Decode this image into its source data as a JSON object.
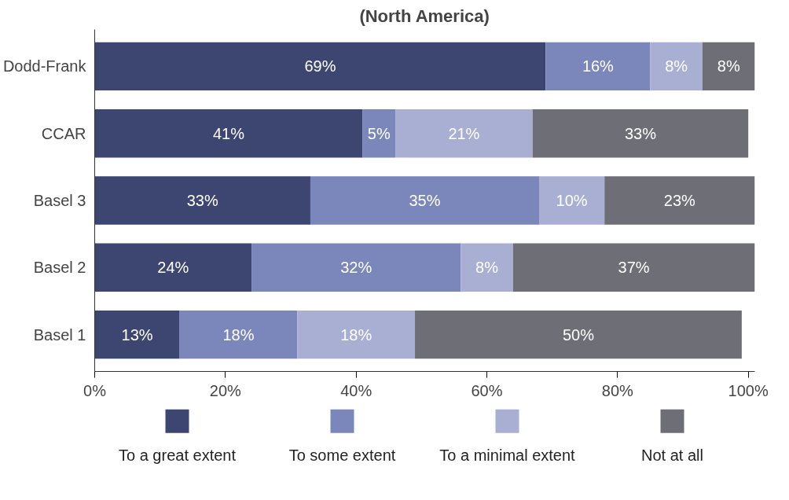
{
  "chart_data": {
    "type": "bar",
    "title": "(North America)",
    "orientation": "horizontal",
    "stacked": true,
    "grid": false,
    "legend": "bottom",
    "categories": [
      "Dodd-Frank",
      "CCAR",
      "Basel 3",
      "Basel 2",
      "Basel 1"
    ],
    "xlim": [
      0,
      101
    ],
    "xticks": [
      {
        "value": 0,
        "label": "0%"
      },
      {
        "value": 20,
        "label": "20%"
      },
      {
        "value": 40,
        "label": "40%"
      },
      {
        "value": 60,
        "label": "60%"
      },
      {
        "value": 80,
        "label": "80%"
      },
      {
        "value": 100,
        "label": "100%"
      }
    ],
    "series": [
      {
        "name": "To a great extent",
        "color": "#3d4670",
        "values": [
          69,
          41,
          33,
          24,
          13
        ],
        "value_labels": [
          "69%",
          "41%",
          "33%",
          "24%",
          "13%"
        ]
      },
      {
        "name": "To some extent",
        "color": "#7b87bb",
        "values": [
          16,
          5,
          35,
          32,
          18
        ],
        "value_labels": [
          "16%",
          "5%",
          "35%",
          "32%",
          "18%"
        ]
      },
      {
        "name": "To a minimal extent",
        "color": "#a9afd3",
        "values": [
          8,
          21,
          10,
          8,
          18
        ],
        "value_labels": [
          "8%",
          "21%",
          "10%",
          "8%",
          "18%"
        ]
      },
      {
        "name": "Not at all",
        "color": "#6e6e76",
        "values": [
          8,
          33,
          23,
          37,
          50
        ],
        "value_labels": [
          "8%",
          "33%",
          "23%",
          "37%",
          "50%"
        ]
      }
    ]
  }
}
